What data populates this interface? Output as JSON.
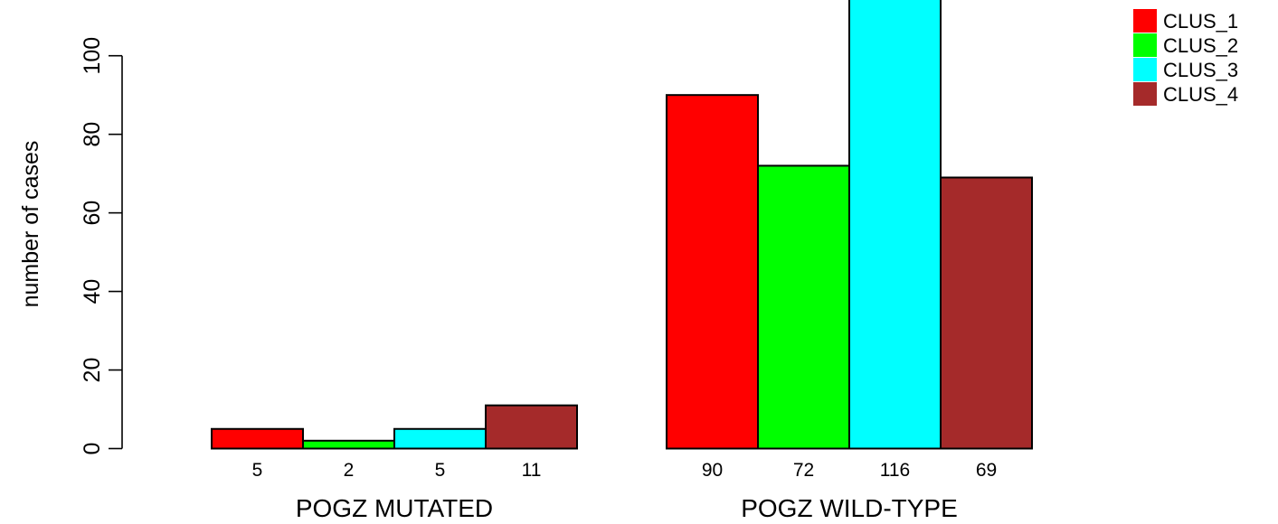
{
  "chart_data": {
    "type": "bar",
    "ylabel": "number of cases",
    "ylim": [
      0,
      116
    ],
    "yticks": [
      0,
      20,
      40,
      60,
      80,
      100
    ],
    "grid": false,
    "legend_position": "top-right",
    "groups": [
      {
        "label": "POGZ MUTATED",
        "values": [
          5,
          2,
          5,
          11
        ]
      },
      {
        "label": "POGZ WILD-TYPE",
        "values": [
          90,
          72,
          116,
          69
        ]
      }
    ],
    "series": [
      {
        "name": "CLUS_1",
        "color": "#ff0000"
      },
      {
        "name": "CLUS_2",
        "color": "#00ff00"
      },
      {
        "name": "CLUS_3",
        "color": "#00ffff"
      },
      {
        "name": "CLUS_4",
        "color": "#a52a2a"
      }
    ]
  }
}
